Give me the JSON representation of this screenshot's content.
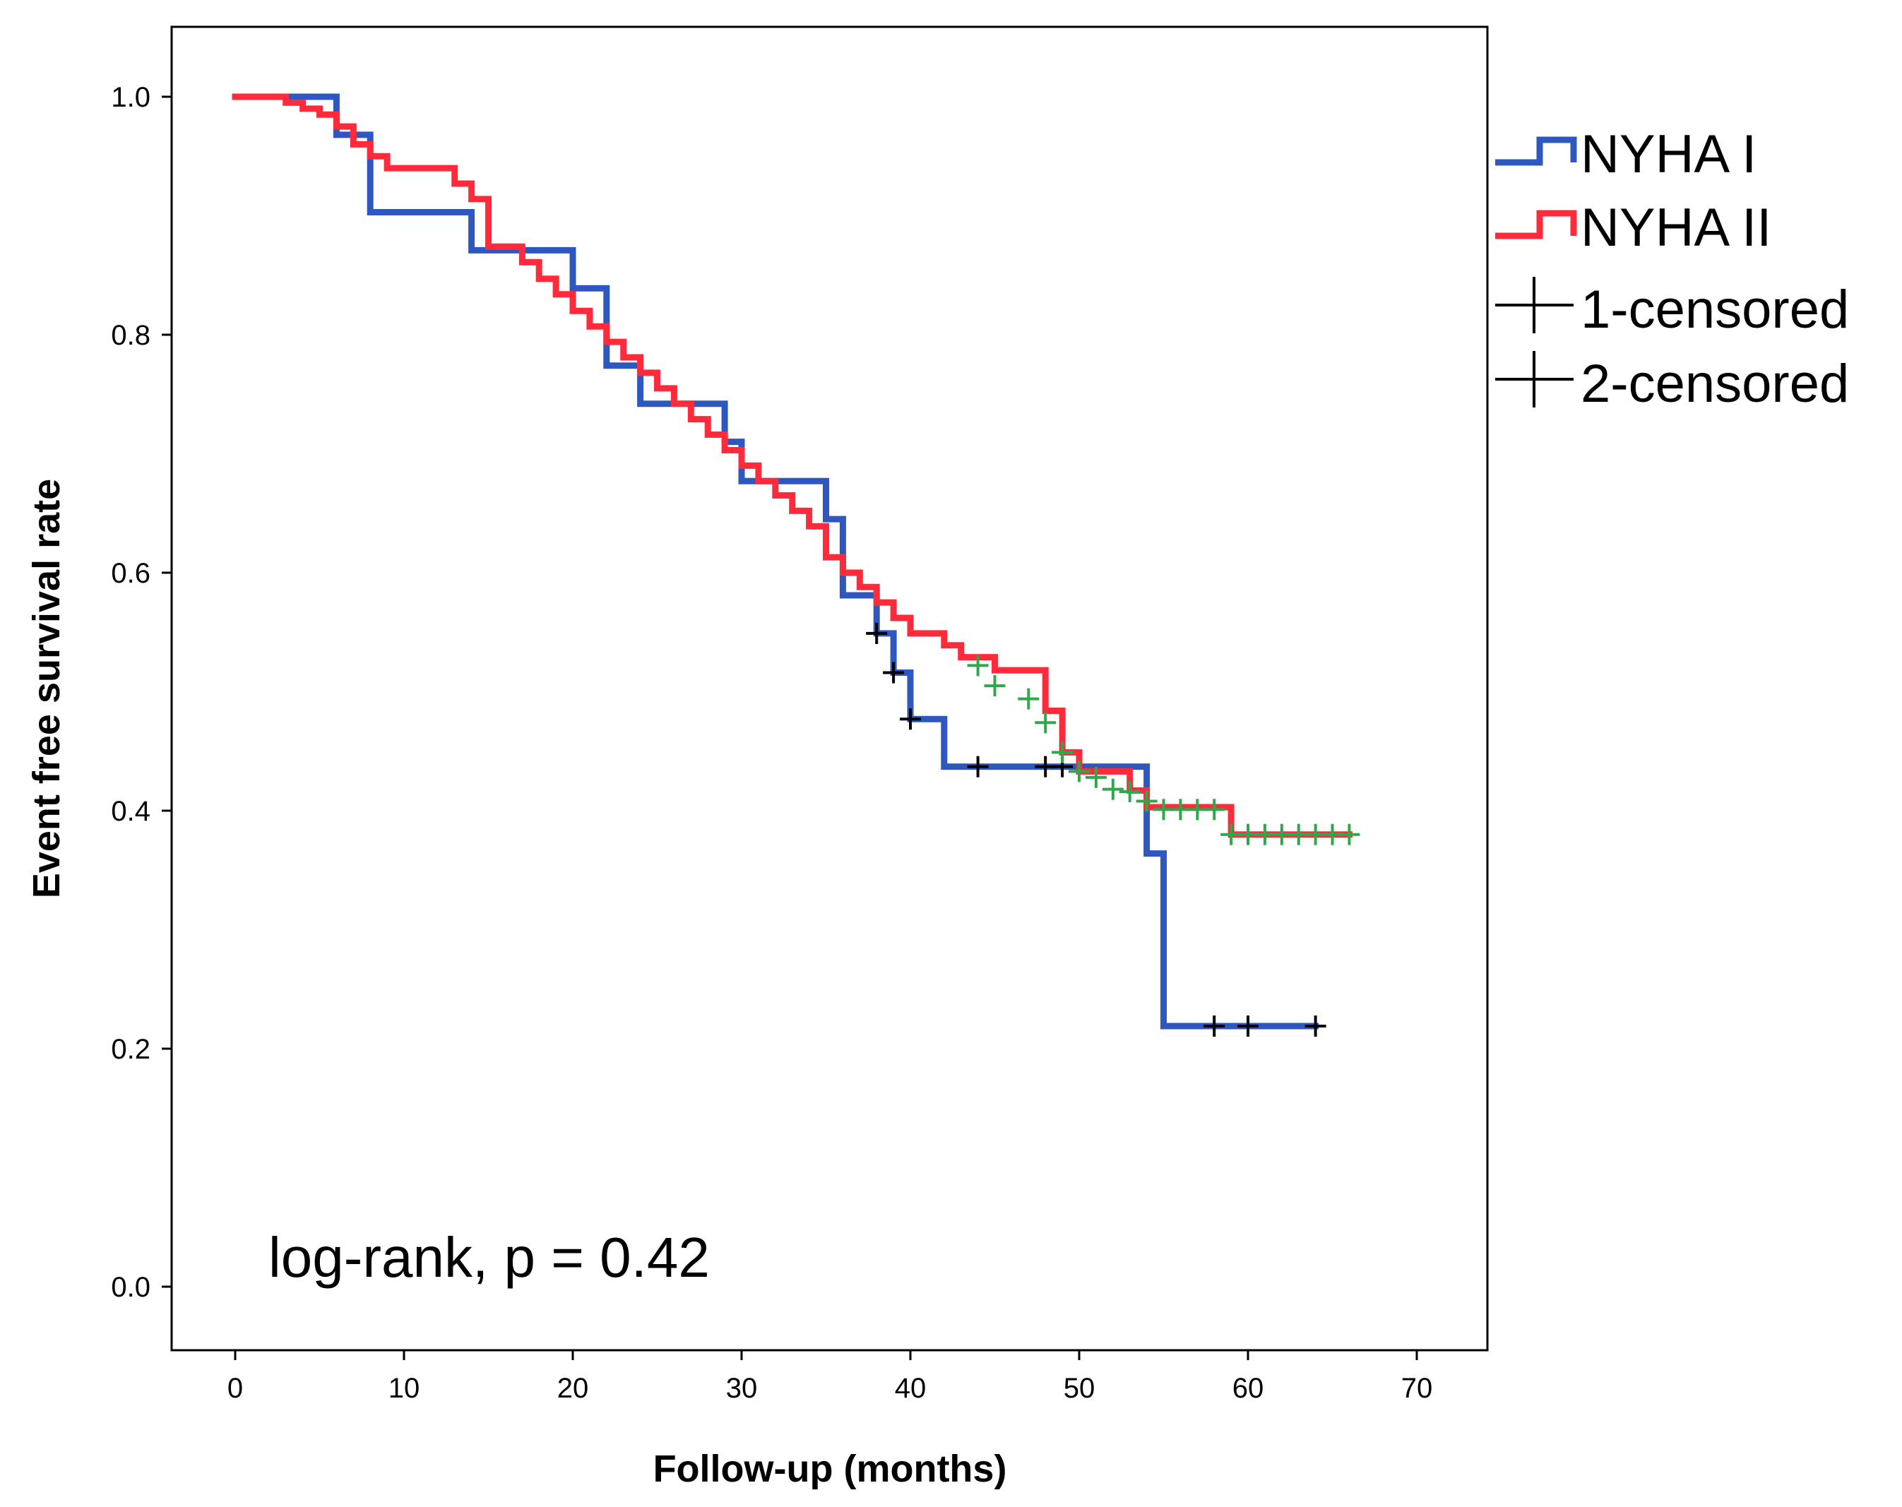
{
  "chart_data": {
    "type": "line",
    "subtype": "kaplan-meier step",
    "title": "",
    "xlabel": "Follow-up (months)",
    "ylabel": "Event free survival rate",
    "xlim": [
      -4,
      74
    ],
    "ylim": [
      -0.05,
      1.06
    ],
    "xticks": [
      0,
      10,
      20,
      30,
      40,
      50,
      60,
      70
    ],
    "yticks": [
      0.0,
      0.2,
      0.4,
      0.6,
      0.8,
      1.0
    ],
    "grid": false,
    "legend_position": "right-top",
    "annotation": "log-rank, p = 0.42",
    "legend": [
      {
        "label": "NYHA I",
        "kind": "line",
        "color": "#2e58bf"
      },
      {
        "label": "NYHA II",
        "kind": "line",
        "color": "#ff2a3a"
      },
      {
        "label": "1-censored",
        "kind": "censor",
        "color": "#000000"
      },
      {
        "label": "2-censored",
        "kind": "censor",
        "color": "#000000"
      }
    ],
    "series": [
      {
        "name": "NYHA I",
        "color": "#2e58bf",
        "censor_color": "#000000",
        "steps": [
          [
            0,
            1.0
          ],
          [
            6,
            0.968
          ],
          [
            8,
            0.903
          ],
          [
            14,
            0.871
          ],
          [
            20,
            0.839
          ],
          [
            22,
            0.774
          ],
          [
            24,
            0.742
          ],
          [
            29,
            0.71
          ],
          [
            30,
            0.677
          ],
          [
            35,
            0.645
          ],
          [
            36,
            0.581
          ],
          [
            38,
            0.549
          ],
          [
            39,
            0.516
          ],
          [
            40,
            0.477
          ],
          [
            42,
            0.437
          ],
          [
            54,
            0.364
          ],
          [
            55,
            0.219
          ]
        ],
        "end_x": 64,
        "censored": [
          [
            38,
            0.549
          ],
          [
            39,
            0.516
          ],
          [
            40,
            0.477
          ],
          [
            44,
            0.437
          ],
          [
            48,
            0.437
          ],
          [
            49,
            0.437
          ],
          [
            58,
            0.219
          ],
          [
            60,
            0.219
          ],
          [
            64,
            0.219
          ]
        ]
      },
      {
        "name": "NYHA II",
        "color": "#ff2a3a",
        "censor_color": "#2ea84a",
        "steps": [
          [
            0,
            1.0
          ],
          [
            3,
            0.995
          ],
          [
            4,
            0.99
          ],
          [
            5,
            0.985
          ],
          [
            6,
            0.975
          ],
          [
            7,
            0.96
          ],
          [
            8,
            0.95
          ],
          [
            9,
            0.94
          ],
          [
            13,
            0.927
          ],
          [
            14,
            0.914
          ],
          [
            15,
            0.874
          ],
          [
            17,
            0.861
          ],
          [
            18,
            0.847
          ],
          [
            19,
            0.834
          ],
          [
            20,
            0.82
          ],
          [
            21,
            0.807
          ],
          [
            22,
            0.794
          ],
          [
            23,
            0.781
          ],
          [
            24,
            0.768
          ],
          [
            25,
            0.755
          ],
          [
            26,
            0.742
          ],
          [
            27,
            0.729
          ],
          [
            28,
            0.716
          ],
          [
            29,
            0.703
          ],
          [
            30,
            0.69
          ],
          [
            31,
            0.677
          ],
          [
            32,
            0.665
          ],
          [
            33,
            0.652
          ],
          [
            34,
            0.639
          ],
          [
            35,
            0.613
          ],
          [
            36,
            0.6
          ],
          [
            37,
            0.588
          ],
          [
            38,
            0.575
          ],
          [
            39,
            0.562
          ],
          [
            40,
            0.549
          ],
          [
            42,
            0.539
          ],
          [
            43,
            0.529
          ],
          [
            45,
            0.518
          ],
          [
            48,
            0.484
          ],
          [
            49,
            0.449
          ],
          [
            50,
            0.433
          ],
          [
            53,
            0.417
          ],
          [
            54,
            0.403
          ],
          [
            59,
            0.38
          ]
        ],
        "end_x": 66,
        "censored": [
          [
            44,
            0.522
          ],
          [
            45,
            0.505
          ],
          [
            47,
            0.494
          ],
          [
            48,
            0.474
          ],
          [
            49,
            0.449
          ],
          [
            50,
            0.433
          ],
          [
            51,
            0.428
          ],
          [
            52,
            0.418
          ],
          [
            53,
            0.416
          ],
          [
            54,
            0.408
          ],
          [
            55,
            0.401
          ],
          [
            56,
            0.401
          ],
          [
            57,
            0.401
          ],
          [
            58,
            0.401
          ],
          [
            59,
            0.38
          ],
          [
            60,
            0.38
          ],
          [
            61,
            0.38
          ],
          [
            62,
            0.38
          ],
          [
            63,
            0.38
          ],
          [
            64,
            0.38
          ],
          [
            65,
            0.38
          ],
          [
            66,
            0.38
          ]
        ]
      }
    ]
  }
}
